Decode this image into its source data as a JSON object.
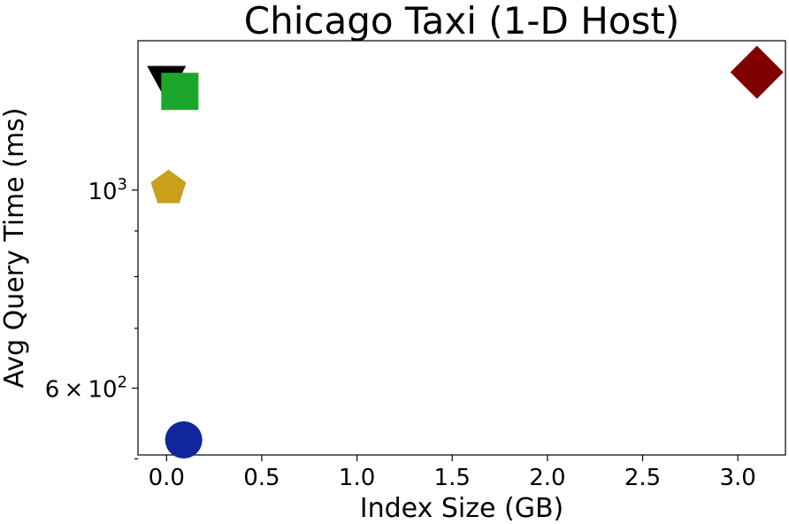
{
  "chart_data": {
    "type": "scatter",
    "title": "Chicago Taxi (1-D Host)",
    "xlabel": "Index Size (GB)",
    "ylabel": "Avg Query Time (ms)",
    "xlim": [
      -0.15,
      3.25
    ],
    "ylim": [
      505,
      1470
    ],
    "yscale": "log",
    "grid": false,
    "x_ticks": [
      {
        "value": 0.0,
        "label": "0.0"
      },
      {
        "value": 0.5,
        "label": "0.5"
      },
      {
        "value": 1.0,
        "label": "1.0"
      },
      {
        "value": 1.5,
        "label": "1.5"
      },
      {
        "value": 2.0,
        "label": "2.0"
      },
      {
        "value": 2.5,
        "label": "2.5"
      },
      {
        "value": 3.0,
        "label": "3.0"
      }
    ],
    "y_major_ticks": [
      {
        "value": 600,
        "base": "6",
        "times": "×",
        "exp_base": "10",
        "exp": "2"
      },
      {
        "value": 1000,
        "base": "",
        "times": "",
        "exp_base": "10",
        "exp": "3"
      }
    ],
    "y_minor_ticks": [
      500,
      700,
      800,
      900
    ],
    "points": [
      {
        "x": 0.0,
        "y": 1319,
        "marker": "triangle-down",
        "color": "#000000"
      },
      {
        "x": 0.07,
        "y": 1290,
        "marker": "square",
        "color": "#1ca62c"
      },
      {
        "x": 0.01,
        "y": 1005,
        "marker": "pentagon",
        "color": "#c8a01a"
      },
      {
        "x": 0.09,
        "y": 525,
        "marker": "circle",
        "color": "#11269b"
      },
      {
        "x": 3.1,
        "y": 1355,
        "marker": "diamond",
        "color": "#800000"
      }
    ]
  }
}
